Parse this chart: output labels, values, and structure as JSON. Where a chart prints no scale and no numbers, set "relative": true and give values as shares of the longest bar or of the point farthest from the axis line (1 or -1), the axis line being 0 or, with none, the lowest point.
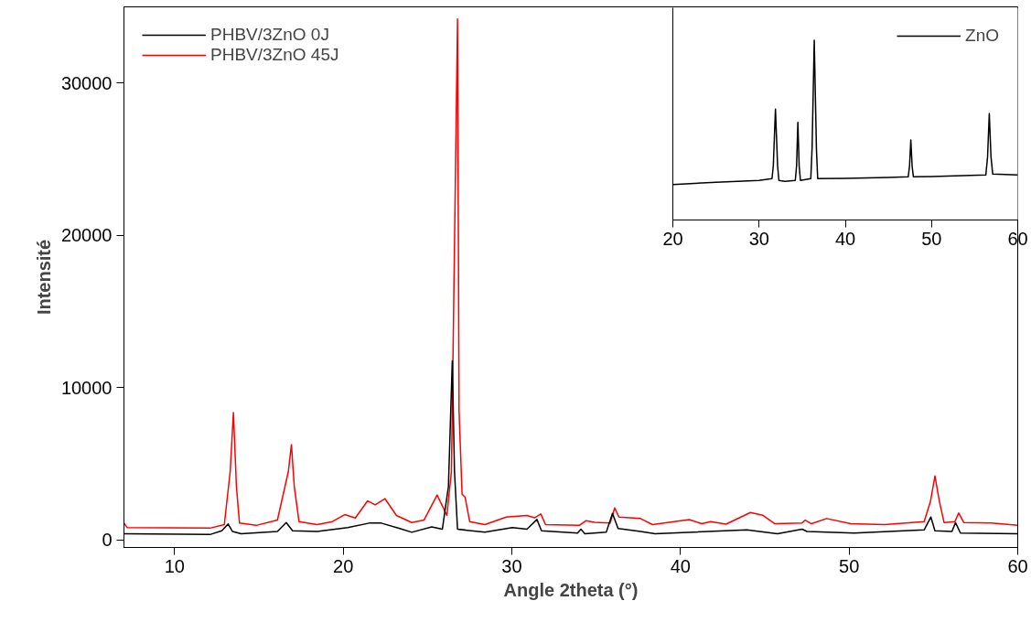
{
  "chart_data": [
    {
      "type": "line",
      "xlabel": "Angle 2theta (°)",
      "ylabel": "Intensité",
      "xlim": [
        7,
        60
      ],
      "ylim": [
        -500,
        35000
      ],
      "xticks": [
        10,
        20,
        30,
        40,
        50,
        60
      ],
      "yticks": [
        0,
        10000,
        20000,
        30000
      ],
      "legend": "top left",
      "grid": false,
      "series": [
        {
          "name": "PHBV/3ZnO 0J",
          "color": "#000000",
          "x": [
            7,
            12.1,
            12.8,
            13.18,
            13.44,
            13.95,
            16.1,
            16.62,
            17.0,
            18.46,
            20.27,
            21.54,
            22.26,
            23.35,
            24.07,
            25.25,
            25.88,
            26.24,
            26.47,
            26.6,
            26.78,
            28.4,
            30.03,
            30.9,
            31.49,
            31.76,
            33.9,
            34.1,
            34.33,
            35.6,
            35.97,
            36.3,
            37.63,
            38.5,
            43.94,
            45.75,
            47.22,
            47.5,
            50.3,
            54.45,
            54.85,
            55.09,
            56.1,
            56.31,
            56.6,
            60
          ],
          "values": [
            400,
            350,
            600,
            1040,
            550,
            400,
            550,
            1140,
            600,
            550,
            800,
            1100,
            1100,
            750,
            500,
            850,
            700,
            3500,
            11760,
            4500,
            700,
            500,
            800,
            700,
            1340,
            600,
            450,
            700,
            400,
            500,
            1740,
            750,
            550,
            400,
            650,
            400,
            700,
            550,
            450,
            650,
            1500,
            600,
            550,
            1140,
            450,
            400
          ]
        },
        {
          "name": "PHBV/3ZnO 45J",
          "color": "#ff0000",
          "x": [
            7,
            7.2,
            12.1,
            12.95,
            13.3,
            13.49,
            13.67,
            13.85,
            14.85,
            16.1,
            16.75,
            16.93,
            17.1,
            17.38,
            18.46,
            19.36,
            20.09,
            20.72,
            21.45,
            21.9,
            22.48,
            23.16,
            24.07,
            24.79,
            25.57,
            26.15,
            26.42,
            26.78,
            26.87,
            27.05,
            27.23,
            27.5,
            28.4,
            29.67,
            30.9,
            31.35,
            31.72,
            32.0,
            34.0,
            34.4,
            34.9,
            35.83,
            36.1,
            36.35,
            37.63,
            38.34,
            40.52,
            41.25,
            41.8,
            42.7,
            44.15,
            44.87,
            45.6,
            47.2,
            47.4,
            47.77,
            48.67,
            50.1,
            52.1,
            54.45,
            54.82,
            55.09,
            55.36,
            55.63,
            56.27,
            56.5,
            56.8,
            58.45,
            60
          ],
          "values": [
            1100,
            800,
            770,
            1000,
            4500,
            8360,
            3500,
            1100,
            950,
            1300,
            4500,
            6250,
            3500,
            1200,
            1000,
            1200,
            1660,
            1440,
            2560,
            2300,
            2700,
            1600,
            1140,
            1300,
            2950,
            1600,
            4500,
            34200,
            8500,
            3000,
            2800,
            1200,
            1000,
            1500,
            1600,
            1450,
            1700,
            1000,
            950,
            1260,
            1150,
            1100,
            2100,
            1500,
            1400,
            1000,
            1330,
            1060,
            1200,
            1030,
            1800,
            1620,
            1060,
            1100,
            1300,
            1060,
            1400,
            1060,
            1000,
            1200,
            2500,
            4200,
            2500,
            1140,
            1200,
            1760,
            1140,
            1100,
            960
          ]
        }
      ]
    },
    {
      "type": "line",
      "relative": true,
      "xlim": [
        20,
        60
      ],
      "xticks": [
        20,
        30,
        40,
        50,
        60
      ],
      "tick_labels": "x",
      "legend": "top right",
      "grid": false,
      "series": [
        {
          "name": "ZnO",
          "color": "#000000",
          "x": [
            20,
            25,
            30,
            31.5,
            31.65,
            31.9,
            32.15,
            32.3,
            33,
            34.2,
            34.35,
            34.5,
            34.65,
            34.8,
            36.0,
            36.15,
            36.4,
            36.65,
            36.8,
            40,
            45,
            47.3,
            47.45,
            47.6,
            47.75,
            47.9,
            50,
            56.3,
            56.5,
            56.7,
            56.9,
            57.1,
            60
          ],
          "values": [
            0.197,
            0.21,
            0.22,
            0.23,
            0.3,
            0.617,
            0.3,
            0.22,
            0.215,
            0.22,
            0.3,
            0.543,
            0.3,
            0.22,
            0.23,
            0.4,
            1.0,
            0.4,
            0.23,
            0.232,
            0.236,
            0.24,
            0.3,
            0.445,
            0.3,
            0.24,
            0.241,
            0.25,
            0.35,
            0.593,
            0.35,
            0.255,
            0.251
          ]
        }
      ]
    }
  ]
}
